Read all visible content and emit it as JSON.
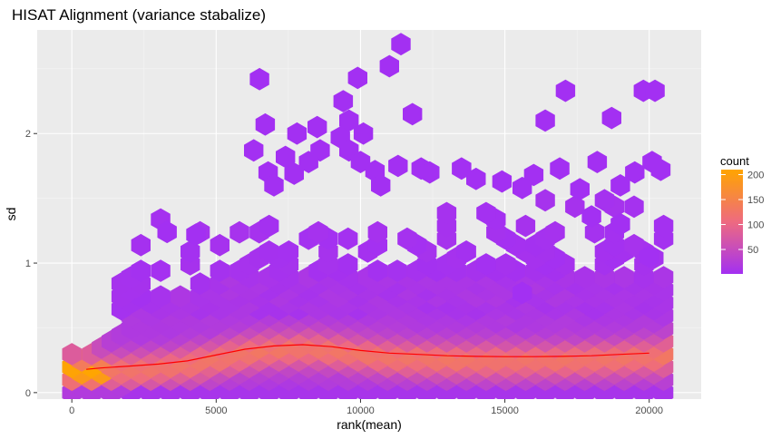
{
  "chart_data": {
    "type": "heatmap",
    "subtype": "hexbin-scatter-with-smooth-line",
    "title": "HISAT Alignment (variance stabalize)",
    "xlabel": "rank(mean)",
    "ylabel": "sd",
    "xlim": [
      -1200,
      21800
    ],
    "ylim": [
      -0.05,
      2.8
    ],
    "x_ticks": [
      0,
      5000,
      10000,
      15000,
      20000
    ],
    "x_tick_labels": [
      "0",
      "5000",
      "10000",
      "15000",
      "20000"
    ],
    "y_ticks": [
      0,
      1,
      2
    ],
    "y_tick_labels": [
      "0",
      "1",
      "2"
    ],
    "grid": true,
    "background": "#ebebeb",
    "legend": {
      "title": "count",
      "position": "right",
      "breaks": [
        50,
        100,
        150,
        200
      ],
      "labels": [
        "50",
        "100",
        "150",
        "200"
      ],
      "range": [
        1,
        210
      ],
      "color_low": "#a330f2",
      "color_mid": "#ee6a80",
      "color_high": "#ffa500"
    },
    "hexbin": {
      "bin_count_x": 30,
      "x_range": [
        0,
        20500
      ],
      "dense_band_top": 0.9,
      "density_note": "counts highest near sd 0.15-0.35; peak near x 500, sd 0.18"
    },
    "outliers": [
      [
        11400,
        2.69
      ],
      [
        11000,
        2.52
      ],
      [
        9900,
        2.43
      ],
      [
        6500,
        2.42
      ],
      [
        17100,
        2.33
      ],
      [
        19800,
        2.33
      ],
      [
        20200,
        2.33
      ],
      [
        9400,
        2.25
      ],
      [
        11800,
        2.15
      ],
      [
        16400,
        2.1
      ],
      [
        18700,
        2.12
      ],
      [
        6700,
        2.07
      ],
      [
        9600,
        2.1
      ],
      [
        8500,
        2.05
      ],
      [
        10100,
        2.0
      ],
      [
        7800,
        2.0
      ],
      [
        9300,
        1.97
      ],
      [
        8600,
        1.87
      ],
      [
        6300,
        1.87
      ],
      [
        9600,
        1.87
      ],
      [
        7400,
        1.82
      ],
      [
        8200,
        1.78
      ],
      [
        10000,
        1.78
      ],
      [
        11300,
        1.75
      ],
      [
        12100,
        1.73
      ],
      [
        13500,
        1.73
      ],
      [
        16900,
        1.73
      ],
      [
        18200,
        1.78
      ],
      [
        20100,
        1.78
      ],
      [
        6800,
        1.7
      ],
      [
        7700,
        1.69
      ],
      [
        10500,
        1.71
      ],
      [
        12400,
        1.7
      ],
      [
        14000,
        1.65
      ],
      [
        14900,
        1.63
      ],
      [
        16000,
        1.68
      ],
      [
        19500,
        1.7
      ],
      [
        20400,
        1.72
      ],
      [
        7000,
        1.6
      ],
      [
        10700,
        1.6
      ],
      [
        15600,
        1.58
      ],
      [
        17600,
        1.57
      ],
      [
        19000,
        1.6
      ],
      [
        3300,
        1.24
      ],
      [
        4300,
        1.22
      ],
      [
        15600,
        0.77
      ],
      [
        18000,
        1.36
      ],
      [
        19000,
        1.3
      ],
      [
        20000,
        1.05
      ]
    ],
    "smooth_line": {
      "color": "#ff0000",
      "x": [
        500,
        1000,
        2000,
        3000,
        4000,
        5000,
        6000,
        7000,
        8000,
        9000,
        10000,
        11000,
        12000,
        13000,
        14000,
        15000,
        16000,
        17000,
        18000,
        19000,
        20000
      ],
      "y": [
        0.18,
        0.19,
        0.205,
        0.22,
        0.245,
        0.29,
        0.335,
        0.36,
        0.37,
        0.355,
        0.325,
        0.305,
        0.295,
        0.285,
        0.28,
        0.278,
        0.278,
        0.28,
        0.285,
        0.295,
        0.305
      ]
    }
  }
}
